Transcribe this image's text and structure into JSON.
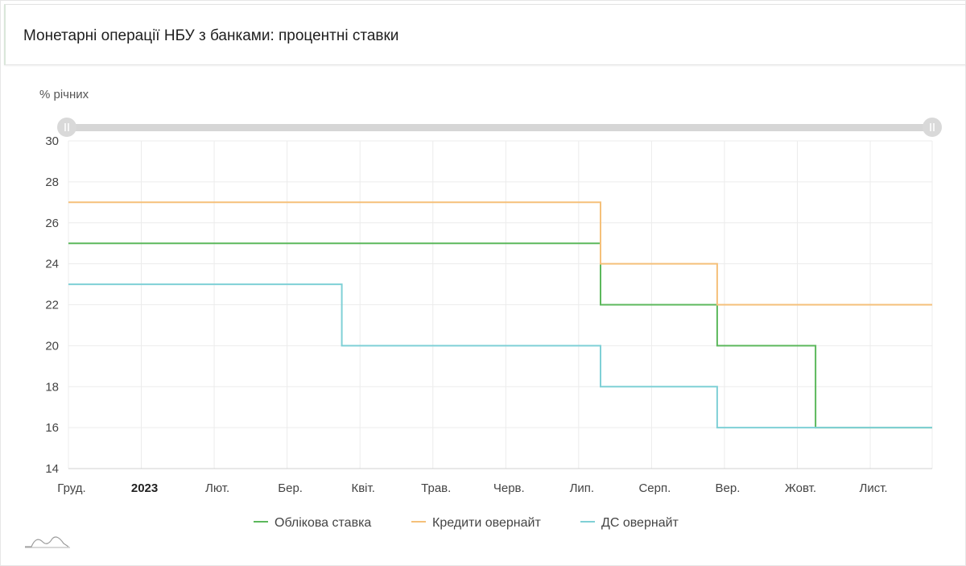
{
  "header": {
    "title": "Монетарні операції НБУ з банками: процентні ставки"
  },
  "chart_data": {
    "type": "line",
    "step": true,
    "unit_label": "% річних",
    "ylim": [
      14,
      30
    ],
    "y_ticks": [
      14,
      16,
      18,
      20,
      22,
      24,
      26,
      28,
      30
    ],
    "x_ticks": [
      {
        "label": "Груд.",
        "bold": false,
        "x": 0
      },
      {
        "label": "2023",
        "bold": true,
        "x": 1
      },
      {
        "label": "Лют.",
        "bold": false,
        "x": 2
      },
      {
        "label": "Бер.",
        "bold": false,
        "x": 3
      },
      {
        "label": "Квіт.",
        "bold": false,
        "x": 4
      },
      {
        "label": "Трав.",
        "bold": false,
        "x": 5
      },
      {
        "label": "Черв.",
        "bold": false,
        "x": 6
      },
      {
        "label": "Лип.",
        "bold": false,
        "x": 7
      },
      {
        "label": "Серп.",
        "bold": false,
        "x": 8
      },
      {
        "label": "Вер.",
        "bold": false,
        "x": 9
      },
      {
        "label": "Жовт.",
        "bold": false,
        "x": 10
      },
      {
        "label": "Лист.",
        "bold": false,
        "x": 11
      }
    ],
    "xlim": [
      0,
      11.85
    ],
    "grid": true,
    "legend": "bottom",
    "series": [
      {
        "name": "Облікова ставка",
        "color": "#5cb85c",
        "points": [
          [
            0,
            25
          ],
          [
            7.3,
            25
          ],
          [
            7.3,
            22
          ],
          [
            8.9,
            22
          ],
          [
            8.9,
            20
          ],
          [
            10.25,
            20
          ],
          [
            10.25,
            16
          ],
          [
            11.85,
            16
          ]
        ]
      },
      {
        "name": "Кредити овернайт",
        "color": "#f5c07a",
        "points": [
          [
            0,
            27
          ],
          [
            7.3,
            27
          ],
          [
            7.3,
            24
          ],
          [
            8.9,
            24
          ],
          [
            8.9,
            22
          ],
          [
            11.85,
            22
          ]
        ]
      },
      {
        "name": "ДС овернайт",
        "color": "#7fd0d6",
        "points": [
          [
            0,
            23
          ],
          [
            3.75,
            23
          ],
          [
            3.75,
            20
          ],
          [
            7.3,
            20
          ],
          [
            7.3,
            18
          ],
          [
            8.9,
            18
          ],
          [
            8.9,
            16
          ],
          [
            11.85,
            16
          ]
        ]
      }
    ]
  }
}
